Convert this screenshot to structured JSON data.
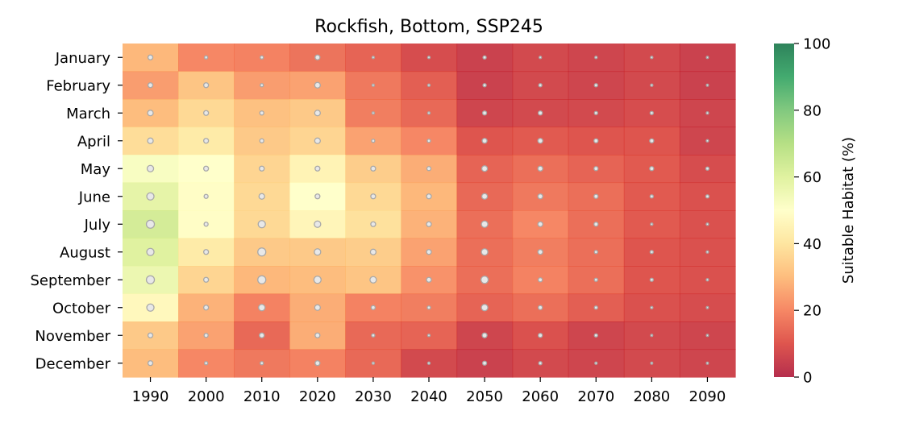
{
  "chart_data": {
    "type": "heatmap",
    "title": "Rockfish, Bottom, SSP245",
    "xlabel": "",
    "ylabel": "",
    "x_categories": [
      "1990",
      "2000",
      "2010",
      "2020",
      "2030",
      "2040",
      "2050",
      "2060",
      "2070",
      "2080",
      "2090"
    ],
    "y_categories": [
      "January",
      "February",
      "March",
      "April",
      "May",
      "June",
      "July",
      "August",
      "September",
      "October",
      "November",
      "December"
    ],
    "values": [
      [
        29,
        20,
        19,
        16,
        13,
        8,
        5,
        7,
        6,
        7,
        5
      ],
      [
        24,
        32,
        24,
        25,
        17,
        12,
        5,
        7,
        6,
        7,
        5
      ],
      [
        30,
        37,
        31,
        33,
        18,
        14,
        6,
        7,
        7,
        8,
        6
      ],
      [
        38,
        42,
        33,
        36,
        25,
        20,
        10,
        11,
        10,
        10,
        6
      ],
      [
        52,
        50,
        36,
        45,
        34,
        27,
        13,
        15,
        13,
        11,
        8
      ],
      [
        58,
        49,
        37,
        50,
        37,
        29,
        14,
        17,
        15,
        11,
        9
      ],
      [
        63,
        49,
        37,
        46,
        39,
        28,
        15,
        20,
        15,
        11,
        9
      ],
      [
        60,
        42,
        33,
        33,
        34,
        25,
        15,
        18,
        15,
        10,
        9
      ],
      [
        56,
        36,
        29,
        30,
        32,
        22,
        15,
        19,
        15,
        10,
        9
      ],
      [
        47,
        28,
        19,
        27,
        19,
        18,
        13,
        15,
        12,
        9,
        8
      ],
      [
        33,
        25,
        14,
        27,
        14,
        13,
        6,
        9,
        6,
        7,
        6
      ],
      [
        30,
        20,
        17,
        19,
        14,
        7,
        5,
        7,
        6,
        7,
        6
      ]
    ],
    "marker_sizes": [
      [
        3,
        2,
        2,
        3,
        1.5,
        1.5,
        2,
        1.5,
        1.5,
        1.5,
        1.3
      ],
      [
        3,
        3,
        2,
        3.5,
        1.5,
        1.5,
        2,
        2,
        2,
        1.5,
        1.3
      ],
      [
        3.5,
        3,
        2.5,
        3.5,
        1.5,
        1.5,
        2.5,
        2.5,
        2,
        2,
        1.5
      ],
      [
        3.5,
        3,
        2.5,
        3.5,
        2,
        2,
        3,
        3,
        2.5,
        2.5,
        1.5
      ],
      [
        4,
        3,
        3,
        3,
        3,
        2.5,
        3.5,
        3,
        2.5,
        2.5,
        2
      ],
      [
        4.5,
        2.5,
        3.5,
        3,
        3,
        3,
        3.5,
        3,
        2.5,
        2,
        2
      ],
      [
        5,
        2.5,
        4.5,
        4,
        3,
        3,
        4,
        3,
        2.5,
        1.5,
        1.5
      ],
      [
        4.5,
        3,
        5,
        4,
        3.5,
        3,
        4,
        3,
        2,
        2,
        1.5
      ],
      [
        5,
        3,
        5,
        4.5,
        4,
        3,
        4.5,
        2.5,
        2,
        2,
        1.5
      ],
      [
        4.5,
        3,
        4,
        3.5,
        2.5,
        2,
        4,
        2.5,
        2,
        1.5,
        1.3
      ],
      [
        3,
        2.5,
        3,
        3,
        2,
        1.5,
        3,
        2.5,
        2,
        1.3,
        1.3
      ],
      [
        3,
        2,
        2,
        3,
        1.5,
        1.5,
        2.5,
        2,
        1.5,
        1.3,
        1.3
      ]
    ],
    "colorbar": {
      "label": "Suitable Habitat (%)",
      "min": 0,
      "max": 100,
      "ticks": [
        0,
        20,
        40,
        60,
        80,
        100
      ],
      "colormap": "RdYlGn"
    },
    "colors": {
      "marker_fill": "#e8e8e8",
      "marker_edge": "#a8a8a8"
    },
    "grid": false
  }
}
